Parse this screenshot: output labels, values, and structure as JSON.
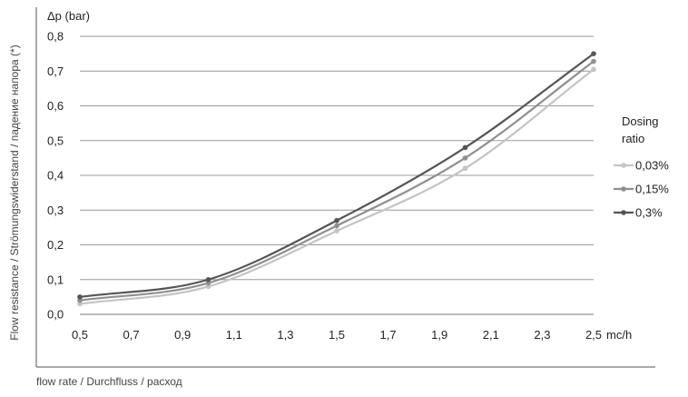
{
  "chart_data": {
    "type": "line",
    "ylabel": "Δp (bar)",
    "xunit": "mc/h",
    "side_label": "Flow resistance / Strömungswiderstand / падение напора   (*)",
    "bottom_label": "flow rate / Durchfluss / расход",
    "legend_title": [
      "Dosing",
      "ratio"
    ],
    "legend_position": "right",
    "xlim": [
      0.5,
      2.5
    ],
    "ylim": [
      0,
      0.8
    ],
    "x_ticks": [
      "0,5",
      "0,7",
      "0,9",
      "1,1",
      "1,3",
      "1,5",
      "1,7",
      "1,9",
      "2,1",
      "2,3",
      "2,5"
    ],
    "y_ticks": [
      "0,0",
      "0,1",
      "0,2",
      "0,3",
      "0,4",
      "0,5",
      "0,6",
      "0,7",
      "0,8"
    ],
    "grid": "horizontal",
    "series": [
      {
        "name": "0,03%",
        "color": "#c4c4c4",
        "x": [
          0.5,
          1.0,
          1.5,
          2.0,
          2.5
        ],
        "y": [
          0.03,
          0.08,
          0.24,
          0.42,
          0.705
        ]
      },
      {
        "name": "0,15%",
        "color": "#8f8f8f",
        "x": [
          0.5,
          1.0,
          1.5,
          2.0,
          2.5
        ],
        "y": [
          0.04,
          0.09,
          0.255,
          0.45,
          0.728
        ]
      },
      {
        "name": "0,3%",
        "color": "#555555",
        "x": [
          0.5,
          1.0,
          1.5,
          2.0,
          2.5
        ],
        "y": [
          0.05,
          0.1,
          0.27,
          0.48,
          0.75
        ]
      }
    ]
  }
}
